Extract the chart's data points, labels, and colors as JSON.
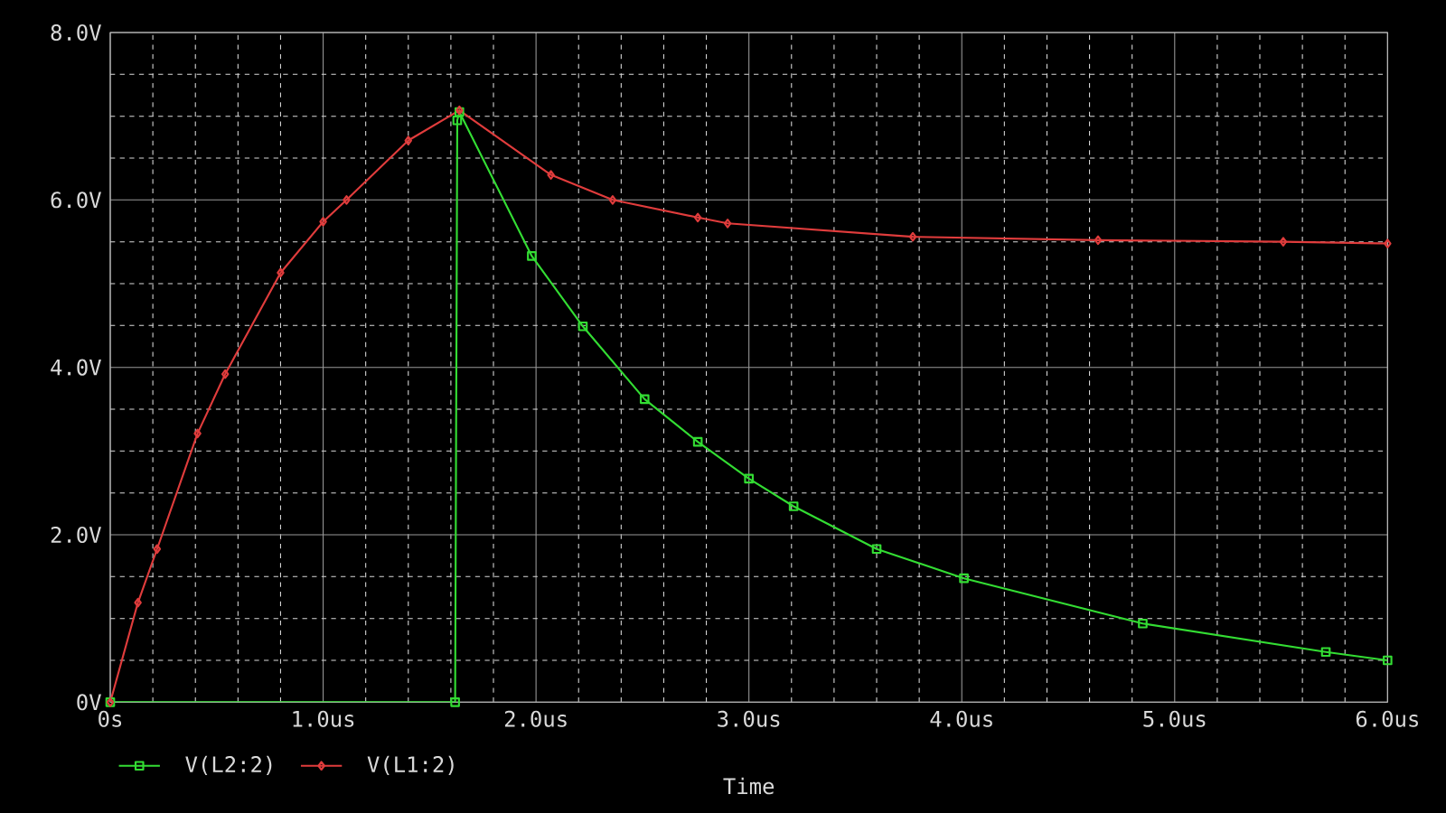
{
  "chart_data": {
    "type": "line",
    "xlabel": "Time",
    "xlim": [
      0,
      6.0
    ],
    "ylim": [
      0,
      8.0
    ],
    "xticks": [
      {
        "value": 0,
        "label": "0s"
      },
      {
        "value": 1,
        "label": "1.0us"
      },
      {
        "value": 2,
        "label": "2.0us"
      },
      {
        "value": 3,
        "label": "3.0us"
      },
      {
        "value": 4,
        "label": "4.0us"
      },
      {
        "value": 5,
        "label": "5.0us"
      },
      {
        "value": 6,
        "label": "6.0us"
      }
    ],
    "yticks": [
      {
        "value": 0,
        "label": "0V"
      },
      {
        "value": 2,
        "label": "2.0V"
      },
      {
        "value": 4,
        "label": "4.0V"
      },
      {
        "value": 6,
        "label": "6.0V"
      },
      {
        "value": 8,
        "label": "8.0V"
      }
    ],
    "grid": true,
    "legend": "bottom left",
    "line_style": "solid",
    "series": [
      {
        "name": "V(L2:2)",
        "color": "#33dd33",
        "marker": "square",
        "x": [
          0,
          1.62,
          1.63,
          1.64,
          1.98,
          2.22,
          2.51,
          2.76,
          3.0,
          3.21,
          3.6,
          4.01,
          4.85,
          5.71,
          6.0
        ],
        "values": [
          0,
          0,
          6.95,
          7.05,
          5.33,
          4.49,
          3.62,
          3.11,
          2.67,
          2.34,
          1.83,
          1.48,
          0.94,
          0.6,
          0.5
        ]
      },
      {
        "name": "V(L1:2)",
        "color": "#e03c3c",
        "marker": "diamond",
        "x": [
          0,
          0.13,
          0.22,
          0.41,
          0.54,
          0.8,
          1.0,
          1.11,
          1.4,
          1.64,
          2.07,
          2.36,
          2.76,
          2.9,
          3.77,
          4.64,
          5.51,
          6.0
        ],
        "values": [
          0,
          1.19,
          1.83,
          3.21,
          3.92,
          5.13,
          5.74,
          6.0,
          6.71,
          7.07,
          6.3,
          6.0,
          5.79,
          5.72,
          5.56,
          5.52,
          5.5,
          5.48
        ]
      }
    ]
  }
}
